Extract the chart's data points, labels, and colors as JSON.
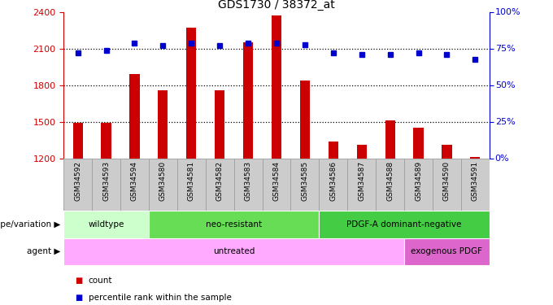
{
  "title": "GDS1730 / 38372_at",
  "samples": [
    "GSM34592",
    "GSM34593",
    "GSM34594",
    "GSM34580",
    "GSM34581",
    "GSM34582",
    "GSM34583",
    "GSM34584",
    "GSM34585",
    "GSM34586",
    "GSM34587",
    "GSM34588",
    "GSM34589",
    "GSM34590",
    "GSM34591"
  ],
  "counts": [
    1490,
    1490,
    1890,
    1760,
    2270,
    1760,
    2150,
    2370,
    1840,
    1340,
    1310,
    1510,
    1450,
    1310,
    1210
  ],
  "percentiles": [
    72,
    74,
    79,
    77,
    79,
    77,
    79,
    79,
    78,
    72,
    71,
    71,
    72,
    71,
    68
  ],
  "ylim_left": [
    1200,
    2400
  ],
  "ylim_right": [
    0,
    100
  ],
  "yticks_left": [
    1200,
    1500,
    1800,
    2100,
    2400
  ],
  "yticks_right": [
    0,
    25,
    50,
    75,
    100
  ],
  "bar_color": "#cc0000",
  "dot_color": "#0000cc",
  "background_color": "#ffffff",
  "plot_bg": "#ffffff",
  "tick_bg": "#cccccc",
  "genotype_groups": [
    {
      "label": "wildtype",
      "start": 0,
      "end": 3,
      "color": "#ccffcc"
    },
    {
      "label": "neo-resistant",
      "start": 3,
      "end": 9,
      "color": "#66dd55"
    },
    {
      "label": "PDGF-A dominant-negative",
      "start": 9,
      "end": 15,
      "color": "#44cc44"
    }
  ],
  "agent_groups": [
    {
      "label": "untreated",
      "start": 0,
      "end": 12,
      "color": "#ffaaff"
    },
    {
      "label": "exogenous PDGF",
      "start": 12,
      "end": 15,
      "color": "#dd66cc"
    }
  ],
  "legend_items": [
    {
      "label": "count",
      "color": "#cc0000"
    },
    {
      "label": "percentile rank within the sample",
      "color": "#0000cc"
    }
  ]
}
